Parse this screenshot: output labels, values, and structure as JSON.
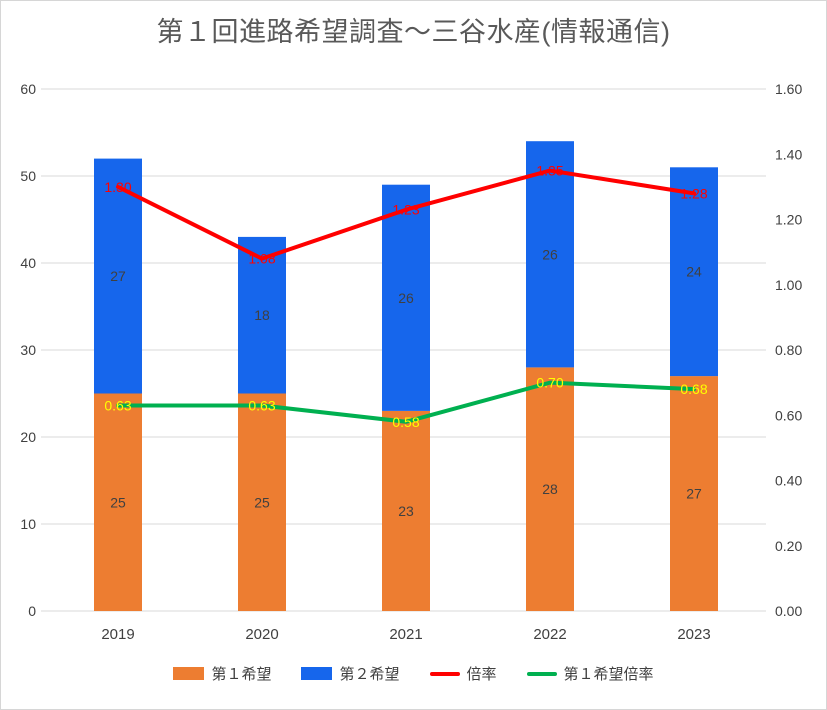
{
  "title": "第１回進路希望調査～三谷水産(情報通信)",
  "chart_data": {
    "type": "combo",
    "categories": [
      "2019",
      "2020",
      "2021",
      "2022",
      "2023"
    ],
    "series": [
      {
        "key": "first-choice",
        "name": "第１希望",
        "type": "bar",
        "axis": "left",
        "color": "#ED7D31",
        "values": [
          25,
          25,
          23,
          28,
          27
        ]
      },
      {
        "key": "second-choice",
        "name": "第２希望",
        "type": "bar",
        "axis": "left",
        "color": "#1666EC",
        "values": [
          27,
          18,
          26,
          26,
          24
        ]
      },
      {
        "key": "ratio",
        "name": "倍率",
        "type": "line",
        "axis": "right",
        "color": "#FF0000",
        "values": [
          1.3,
          1.08,
          1.23,
          1.35,
          1.28
        ],
        "labels": [
          "1.30",
          "1.08",
          "1.23",
          "1.35",
          "1.28"
        ],
        "label_color": "#FF0000"
      },
      {
        "key": "first-choice-ratio",
        "name": "第１希望倍率",
        "type": "line",
        "axis": "right",
        "color": "#00B050",
        "values": [
          0.63,
          0.63,
          0.58,
          0.7,
          0.68
        ],
        "labels": [
          "0.63",
          "0.63",
          "0.58",
          "0.70",
          "0.68"
        ],
        "label_color": "#FFFF00"
      }
    ],
    "left_axis": {
      "min": 0,
      "max": 60,
      "step": 10,
      "ticks": [
        "0",
        "10",
        "20",
        "30",
        "40",
        "50",
        "60"
      ]
    },
    "right_axis": {
      "min": 0,
      "max": 1.6,
      "step": 0.2,
      "ticks": [
        "0.00",
        "0.20",
        "0.40",
        "0.60",
        "0.80",
        "1.00",
        "1.20",
        "1.40",
        "1.60"
      ]
    },
    "grid": true,
    "legend_position": "bottom",
    "bar_value_color": "#404040",
    "gridline_color": "#D9D9D9",
    "axis_label_color": "#404040"
  }
}
